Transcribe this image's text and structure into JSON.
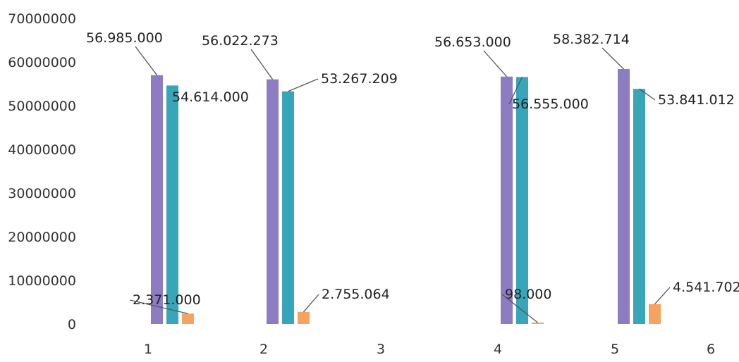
{
  "chart_data": {
    "type": "bar",
    "title": "",
    "xlabel": "",
    "ylabel": "",
    "ylim": [
      0,
      70000000
    ],
    "yticks": [
      0,
      10000000,
      20000000,
      30000000,
      40000000,
      50000000,
      60000000,
      70000000
    ],
    "ytick_labels": [
      "0",
      "10000000",
      "20000000",
      "30000000",
      "40000000",
      "50000000",
      "60000000",
      "70000000"
    ],
    "categories": [
      "1",
      "2",
      "3",
      "4",
      "5",
      "6"
    ],
    "grid": false,
    "legend": "none",
    "series": [
      {
        "color": "#8e7cc3",
        "values": [
          56985000,
          56022273,
          null,
          56653000,
          58382714,
          null
        ],
        "labels": [
          "56.985.000",
          "56.022.273",
          "",
          "56.653.000",
          "58.382.714",
          ""
        ]
      },
      {
        "color": "#36a6b8",
        "values": [
          54614000,
          53267209,
          null,
          56555000,
          53841012,
          null
        ],
        "labels": [
          "54.614.000",
          "53.267.209",
          "",
          "56.555.000",
          "53.841.012",
          ""
        ]
      },
      {
        "color": "#f4a460",
        "values": [
          2371000,
          2755064,
          null,
          98000,
          4541702,
          null
        ],
        "labels": [
          "2.371.000",
          "2.755.064",
          "",
          "98.000",
          "4.541.702",
          ""
        ]
      }
    ]
  }
}
